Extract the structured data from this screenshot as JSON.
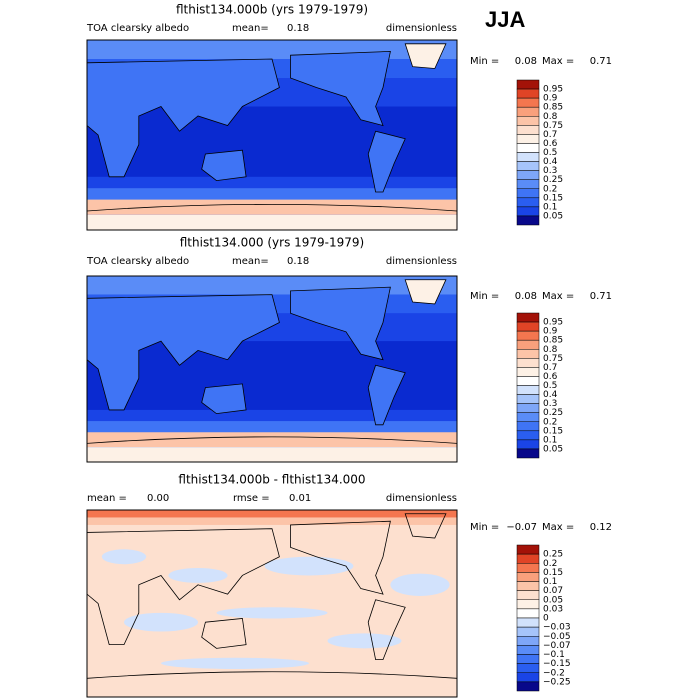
{
  "season": "JJA",
  "panels": [
    {
      "title": "flthist134.000b (yrs 1979-1979)",
      "variable": "TOA clearsky albedo",
      "stat1_label": "mean=",
      "stat1": "0.18",
      "units": "dimensionless",
      "min_label": "Min =",
      "min": "0.08",
      "max_label": "Max =",
      "max": "0.71",
      "colorbar": {
        "levels": [
          "0.95",
          "0.9",
          "0.85",
          "0.8",
          "0.75",
          "0.7",
          "0.6",
          "0.5",
          "0.4",
          "0.3",
          "0.25",
          "0.2",
          "0.15",
          "0.1",
          "0.05"
        ],
        "colors": [
          "#a31208",
          "#e04426",
          "#f4764f",
          "#f9a07c",
          "#fcc4a8",
          "#fde0cf",
          "#fdf1e6",
          "#ffffff",
          "#d2e2fc",
          "#a6c4fa",
          "#7ea6f8",
          "#5a8cf7",
          "#3f74f5",
          "#2a5ef0",
          "#1a44e6",
          "#08088a"
        ]
      }
    },
    {
      "title": "flthist134.000 (yrs 1979-1979)",
      "variable": "TOA clearsky albedo",
      "stat1_label": "mean=",
      "stat1": "0.18",
      "units": "dimensionless",
      "min_label": "Min =",
      "min": "0.08",
      "max_label": "Max =",
      "max": "0.71",
      "colorbar": {
        "levels": [
          "0.95",
          "0.9",
          "0.85",
          "0.8",
          "0.75",
          "0.7",
          "0.6",
          "0.5",
          "0.4",
          "0.3",
          "0.25",
          "0.2",
          "0.15",
          "0.1",
          "0.05"
        ],
        "colors": [
          "#a31208",
          "#e04426",
          "#f4764f",
          "#f9a07c",
          "#fcc4a8",
          "#fde0cf",
          "#fdf1e6",
          "#ffffff",
          "#d2e2fc",
          "#a6c4fa",
          "#7ea6f8",
          "#5a8cf7",
          "#3f74f5",
          "#2a5ef0",
          "#1a44e6",
          "#08088a"
        ]
      }
    },
    {
      "title": "flthist134.000b - flthist134.000",
      "stat1_label": "mean =",
      "stat1": "0.00",
      "stat2_label": "rmse =",
      "stat2": "0.01",
      "units": "dimensionless",
      "min_label": "Min =",
      "min": "−0.07",
      "max_label": "Max =",
      "max": "0.12",
      "colorbar": {
        "levels": [
          "0.25",
          "0.2",
          "0.15",
          "0.1",
          "0.07",
          "0.05",
          "0.03",
          "0",
          "−0.03",
          "−0.05",
          "−0.07",
          "−0.1",
          "−0.15",
          "−0.2",
          "−0.25"
        ],
        "colors": [
          "#a31208",
          "#e04426",
          "#f4764f",
          "#f9a07c",
          "#fcc4a8",
          "#fde0cf",
          "#fdf1e6",
          "#ffffff",
          "#d2e2fc",
          "#a6c4fa",
          "#7ea6f8",
          "#5a8cf7",
          "#3f74f5",
          "#2a5ef0",
          "#1a44e6",
          "#08088a"
        ]
      }
    }
  ]
}
